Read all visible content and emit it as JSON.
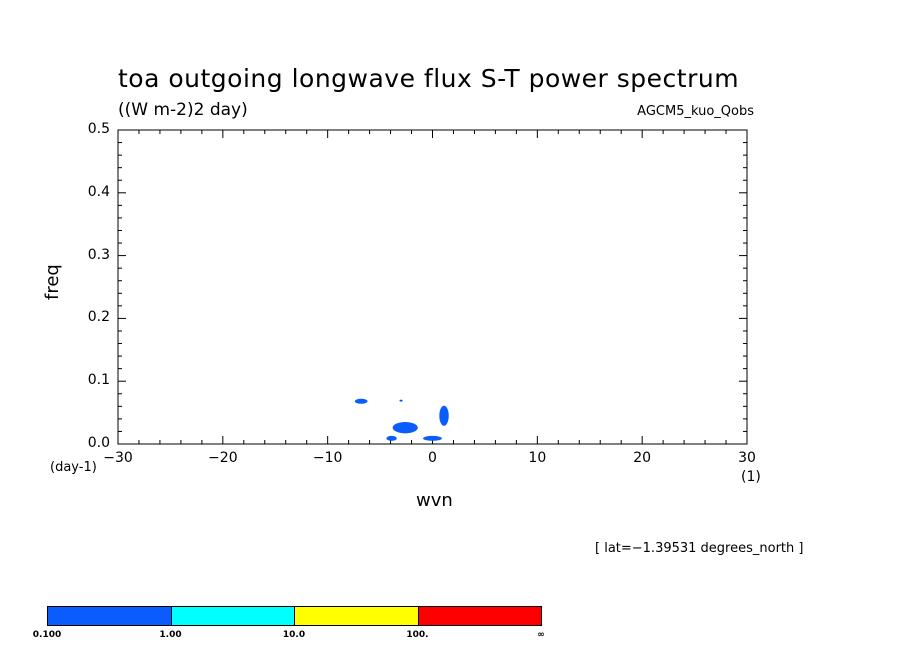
{
  "chart_data": {
    "type": "contour",
    "title": "toa outgoing longwave flux S-T power spectrum",
    "subtitle": "((W m-2)2 day)",
    "dataset": "AGCM5_kuo_Qobs",
    "xlabel": "wvn",
    "ylabel": "freq",
    "x_unit": "(1)",
    "y_unit": "(day-1)",
    "xlim": [
      -30,
      30
    ],
    "ylim": [
      0,
      0.5
    ],
    "x_ticks": [
      -30,
      -20,
      -10,
      0,
      10,
      20,
      30
    ],
    "x_tick_labels": [
      "−30",
      "−20",
      "−10",
      "0",
      "10",
      "20",
      "30"
    ],
    "y_ticks": [
      0.0,
      0.1,
      0.2,
      0.3,
      0.4,
      0.5
    ],
    "y_tick_labels": [
      "0.0",
      "0.1",
      "0.2",
      "0.3",
      "0.4",
      "0.5"
    ],
    "annotation": "[ lat=−1.39531 degrees_north ]",
    "filled_regions": [
      {
        "level_color": "#0a5cff",
        "wvn_center": -6.8,
        "freq_center": 0.068,
        "wvn_halfwidth": 0.6,
        "freq_halfwidth": 0.004
      },
      {
        "level_color": "#0a5cff",
        "wvn_center": -2.6,
        "freq_center": 0.026,
        "wvn_halfwidth": 1.2,
        "freq_halfwidth": 0.009
      },
      {
        "level_color": "#0a5cff",
        "wvn_center": -3.9,
        "freq_center": 0.009,
        "wvn_halfwidth": 0.5,
        "freq_halfwidth": 0.004
      },
      {
        "level_color": "#0a5cff",
        "wvn_center": 0.0,
        "freq_center": 0.009,
        "wvn_halfwidth": 0.9,
        "freq_halfwidth": 0.004
      },
      {
        "level_color": "#0a5cff",
        "wvn_center": 1.1,
        "freq_center": 0.045,
        "wvn_halfwidth": 0.45,
        "freq_halfwidth": 0.016
      },
      {
        "level_color": "#0a5cff",
        "wvn_center": -3.0,
        "freq_center": 0.069,
        "wvn_halfwidth": 0.15,
        "freq_halfwidth": 0.001
      }
    ],
    "colorbar": {
      "levels": [
        "0.100",
        "1.00",
        "10.0",
        "100.",
        "∞"
      ],
      "colors": [
        "#0a5cff",
        "#00ffff",
        "#ffff00",
        "#ff0000"
      ]
    }
  }
}
